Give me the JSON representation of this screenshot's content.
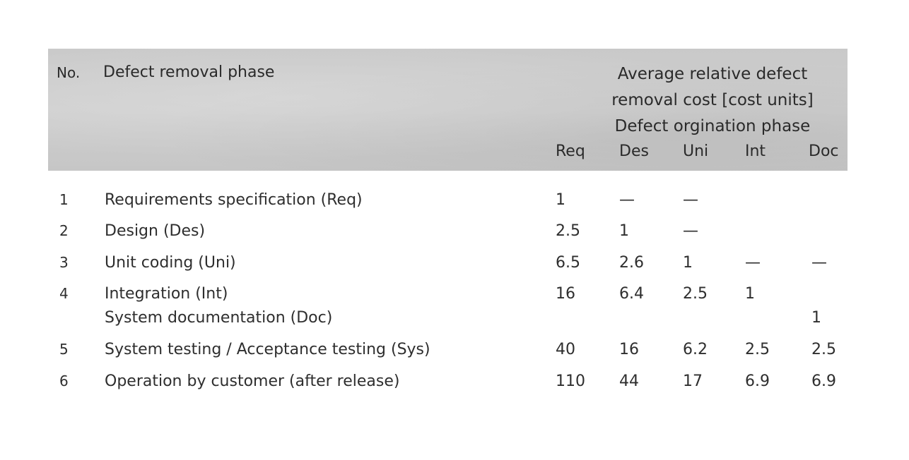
{
  "header": {
    "no": "No.",
    "phase": "Defect removal phase",
    "group_line1": "Average relative defect",
    "group_line2": "removal cost [cost units]",
    "group_line3": "Defect orgination phase",
    "columns": [
      "Req",
      "Des",
      "Uni",
      "Int",
      "Doc"
    ]
  },
  "rows": [
    {
      "no": "1",
      "label": "Requirements specification (Req)",
      "values": [
        "1",
        "—",
        "—",
        "",
        ""
      ]
    },
    {
      "no": "2",
      "label": "Design (Des)",
      "values": [
        "2.5",
        "1",
        "—",
        "",
        ""
      ]
    },
    {
      "no": "3",
      "label": "Unit coding (Uni)",
      "values": [
        "6.5",
        "2.6",
        "1",
        "—",
        "—"
      ]
    },
    {
      "no": "4",
      "label": "Integration (Int)",
      "values": [
        "16",
        "6.4",
        "2.5",
        "1",
        ""
      ]
    },
    {
      "no": "",
      "label": "System documentation (Doc)",
      "values": [
        "",
        "",
        "",
        "",
        "1"
      ]
    },
    {
      "no": "5",
      "label": "System testing / Acceptance testing (Sys)",
      "values": [
        "40",
        "16",
        "6.2",
        "2.5",
        "2.5"
      ]
    },
    {
      "no": "6",
      "label": "Operation by customer (after release)",
      "values": [
        "110",
        "44",
        "17",
        "6.9",
        "6.9"
      ]
    }
  ]
}
